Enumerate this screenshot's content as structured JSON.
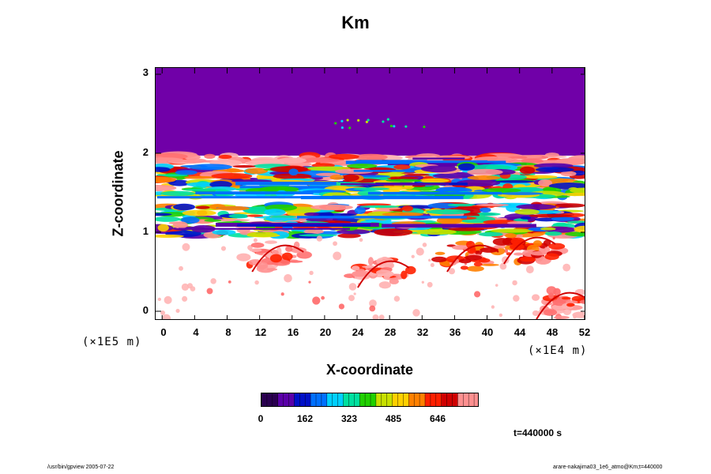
{
  "chart_data": {
    "type": "heatmap",
    "title": "Km",
    "xlabel": "X-coordinate",
    "ylabel": "Z-coordinate",
    "x_scale_label": "(×1E4 m)",
    "y_scale_label": "(×1E5 m)",
    "x_ticks": [
      "0",
      "4",
      "8",
      "12",
      "16",
      "20",
      "24",
      "28",
      "32",
      "36",
      "40",
      "44",
      "48",
      "52"
    ],
    "y_ticks": [
      "0",
      "1",
      "2",
      "3"
    ],
    "xlim": [
      -0.8,
      52.2
    ],
    "ylim": [
      -0.12,
      3.08
    ],
    "colorbar": {
      "ticks": [
        "0",
        "162",
        "323",
        "485",
        "646"
      ],
      "tick_values": [
        0,
        162,
        323,
        485,
        646
      ],
      "max": 800,
      "colors": [
        "#2a0050",
        "#5a00a8",
        "#0010c8",
        "#0070ff",
        "#00d0ff",
        "#00e0a0",
        "#20d000",
        "#c8e000",
        "#ffd000",
        "#ff8000",
        "#ff2000",
        "#d00000",
        "#ff9090"
      ]
    },
    "background_region": {
      "z_min": 1.97,
      "z_max": 3.08,
      "value": 0,
      "color": "#7000a8"
    },
    "bands": [
      {
        "z_min": 1.86,
        "z_max": 1.98,
        "level": "high"
      },
      {
        "z_min": 1.55,
        "z_max": 1.85,
        "level": "mixed"
      },
      {
        "z_min": 1.45,
        "z_max": 1.55,
        "level": "moderate"
      },
      {
        "z_min": 0.95,
        "z_max": 1.35,
        "level": "mixed"
      }
    ],
    "plumes": [
      {
        "x": 14,
        "z": 0.7,
        "level": "high"
      },
      {
        "x": 27,
        "z": 0.5,
        "level": "high"
      },
      {
        "x": 38,
        "z": 0.7,
        "level": "very-high"
      },
      {
        "x": 45,
        "z": 0.8,
        "level": "very-high"
      },
      {
        "x": 49,
        "z": 0.1,
        "level": "high"
      }
    ]
  },
  "time_label": "t=440000 s",
  "footer": {
    "left": "/usr/bin/gpview 2005-07-22",
    "right": "arare-nakajima03_1e6_atmo@Km;t=440000"
  }
}
